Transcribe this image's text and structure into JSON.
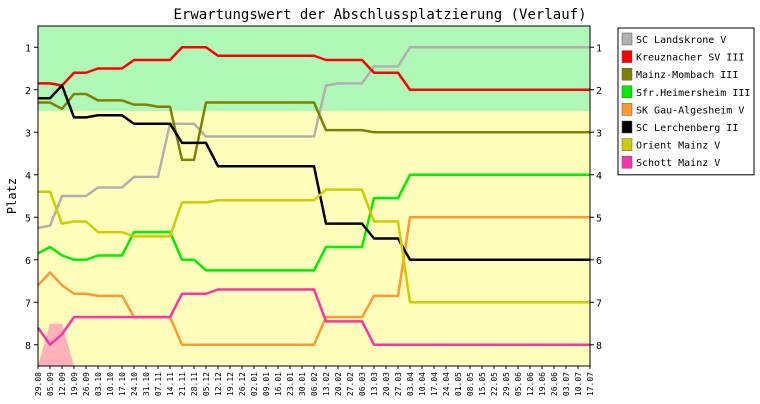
{
  "chart_data": {
    "type": "line",
    "title": "Erwartungswert der Abschlussplatzierung (Verlauf)",
    "ylabel": "Platz",
    "xlabel": "",
    "ylim": [
      8.5,
      0.5
    ],
    "y_ticks": [
      1,
      2,
      3,
      4,
      5,
      6,
      7,
      8
    ],
    "y_tick_labels": [
      "1",
      "2",
      "3",
      "4",
      "5",
      "6",
      "7",
      "8"
    ],
    "legend_position": "right",
    "grid": false,
    "zones": [
      {
        "from": 0.5,
        "to": 2.5,
        "color": "#aff8b8"
      },
      {
        "from": 2.5,
        "to": 8.5,
        "color": "#ffffbb"
      }
    ],
    "x": [
      "29.08",
      "05.09",
      "12.09",
      "19.09",
      "26.09",
      "03.10",
      "10.10",
      "17.10",
      "24.10",
      "31.10",
      "07.11",
      "14.11",
      "21.11",
      "28.11",
      "05.12",
      "12.12",
      "19.12",
      "26.12",
      "02.01",
      "09.01",
      "16.01",
      "23.01",
      "30.01",
      "06.02",
      "13.02",
      "20.02",
      "27.02",
      "06.03",
      "13.03",
      "20.03",
      "27.03",
      "03.04",
      "10.04",
      "17.04",
      "24.04",
      "01.05",
      "08.05",
      "15.05",
      "22.05",
      "29.05",
      "05.06",
      "12.06",
      "19.06",
      "26.06",
      "03.07",
      "10.07",
      "17.07"
    ],
    "background_area": {
      "color": "#ffb0b8",
      "values": [
        8.5,
        7.5,
        7.5,
        8.5
      ]
    },
    "series": [
      {
        "name": "SC Landskrone V",
        "color": "#b0b0b0",
        "values": [
          5.25,
          5.2,
          4.5,
          4.5,
          4.5,
          4.3,
          4.3,
          4.3,
          4.05,
          4.05,
          4.05,
          2.8,
          2.8,
          2.8,
          3.1,
          3.1,
          3.1,
          3.1,
          3.1,
          3.1,
          3.1,
          3.1,
          3.1,
          3.1,
          1.9,
          1.85,
          1.85,
          1.85,
          1.45,
          1.45,
          1.45,
          1.0,
          1.0,
          1.0,
          1.0,
          1.0,
          1.0,
          1.0,
          1.0,
          1.0,
          1.0,
          1.0,
          1.0,
          1.0,
          1.0,
          1.0,
          1.0
        ]
      },
      {
        "name": "Kreuznacher SV III",
        "color": "#ff0000",
        "values": [
          1.85,
          1.85,
          1.9,
          1.6,
          1.6,
          1.5,
          1.5,
          1.5,
          1.3,
          1.3,
          1.3,
          1.3,
          1.0,
          1.0,
          1.0,
          1.2,
          1.2,
          1.2,
          1.2,
          1.2,
          1.2,
          1.2,
          1.2,
          1.2,
          1.3,
          1.3,
          1.3,
          1.3,
          1.6,
          1.6,
          1.6,
          2.0,
          2.0,
          2.0,
          2.0,
          2.0,
          2.0,
          2.0,
          2.0,
          2.0,
          2.0,
          2.0,
          2.0,
          2.0,
          2.0,
          2.0,
          2.0
        ]
      },
      {
        "name": "Mainz-Mombach III",
        "color": "#808000",
        "values": [
          2.3,
          2.3,
          2.45,
          2.1,
          2.1,
          2.25,
          2.25,
          2.25,
          2.35,
          2.35,
          2.4,
          2.4,
          3.65,
          3.65,
          2.3,
          2.3,
          2.3,
          2.3,
          2.3,
          2.3,
          2.3,
          2.3,
          2.3,
          2.3,
          2.95,
          2.95,
          2.95,
          2.95,
          3.0,
          3.0,
          3.0,
          3.0,
          3.0,
          3.0,
          3.0,
          3.0,
          3.0,
          3.0,
          3.0,
          3.0,
          3.0,
          3.0,
          3.0,
          3.0,
          3.0,
          3.0,
          3.0
        ]
      },
      {
        "name": "Sfr.Heimersheim III",
        "color": "#00ee00",
        "values": [
          5.85,
          5.7,
          5.9,
          6.0,
          6.0,
          5.9,
          5.9,
          5.9,
          5.35,
          5.35,
          5.35,
          5.35,
          6.0,
          6.0,
          6.25,
          6.25,
          6.25,
          6.25,
          6.25,
          6.25,
          6.25,
          6.25,
          6.25,
          6.25,
          5.7,
          5.7,
          5.7,
          5.7,
          4.55,
          4.55,
          4.55,
          4.0,
          4.0,
          4.0,
          4.0,
          4.0,
          4.0,
          4.0,
          4.0,
          4.0,
          4.0,
          4.0,
          4.0,
          4.0,
          4.0,
          4.0,
          4.0
        ]
      },
      {
        "name": "SK Gau-Algesheim V",
        "color": "#ff9933",
        "values": [
          6.6,
          6.3,
          6.6,
          6.8,
          6.8,
          6.85,
          6.85,
          6.85,
          7.35,
          7.35,
          7.35,
          7.35,
          8.0,
          8.0,
          8.0,
          8.0,
          8.0,
          8.0,
          8.0,
          8.0,
          8.0,
          8.0,
          8.0,
          8.0,
          7.35,
          7.35,
          7.35,
          7.35,
          6.85,
          6.85,
          6.85,
          5.0,
          5.0,
          5.0,
          5.0,
          5.0,
          5.0,
          5.0,
          5.0,
          5.0,
          5.0,
          5.0,
          5.0,
          5.0,
          5.0,
          5.0,
          5.0
        ]
      },
      {
        "name": "SC Lerchenberg II",
        "color": "#000000",
        "values": [
          2.2,
          2.2,
          1.9,
          2.65,
          2.65,
          2.6,
          2.6,
          2.6,
          2.8,
          2.8,
          2.8,
          2.8,
          3.25,
          3.25,
          3.25,
          3.8,
          3.8,
          3.8,
          3.8,
          3.8,
          3.8,
          3.8,
          3.8,
          3.8,
          5.15,
          5.15,
          5.15,
          5.15,
          5.5,
          5.5,
          5.5,
          6.0,
          6.0,
          6.0,
          6.0,
          6.0,
          6.0,
          6.0,
          6.0,
          6.0,
          6.0,
          6.0,
          6.0,
          6.0,
          6.0,
          6.0,
          6.0
        ]
      },
      {
        "name": "Orient Mainz V",
        "color": "#cccc00",
        "values": [
          4.4,
          4.4,
          5.15,
          5.1,
          5.1,
          5.35,
          5.35,
          5.35,
          5.45,
          5.45,
          5.45,
          5.45,
          4.65,
          4.65,
          4.65,
          4.6,
          4.6,
          4.6,
          4.6,
          4.6,
          4.6,
          4.6,
          4.6,
          4.6,
          4.35,
          4.35,
          4.35,
          4.35,
          5.1,
          5.1,
          5.1,
          7.0,
          7.0,
          7.0,
          7.0,
          7.0,
          7.0,
          7.0,
          7.0,
          7.0,
          7.0,
          7.0,
          7.0,
          7.0,
          7.0,
          7.0,
          7.0
        ]
      },
      {
        "name": "Schott Mainz V",
        "color": "#ff33aa",
        "values": [
          7.6,
          8.0,
          7.75,
          7.35,
          7.35,
          7.35,
          7.35,
          7.35,
          7.35,
          7.35,
          7.35,
          7.35,
          6.8,
          6.8,
          6.8,
          6.7,
          6.7,
          6.7,
          6.7,
          6.7,
          6.7,
          6.7,
          6.7,
          6.7,
          7.45,
          7.45,
          7.45,
          7.45,
          8.0,
          8.0,
          8.0,
          8.0,
          8.0,
          8.0,
          8.0,
          8.0,
          8.0,
          8.0,
          8.0,
          8.0,
          8.0,
          8.0,
          8.0,
          8.0,
          8.0,
          8.0,
          8.0
        ]
      }
    ]
  }
}
